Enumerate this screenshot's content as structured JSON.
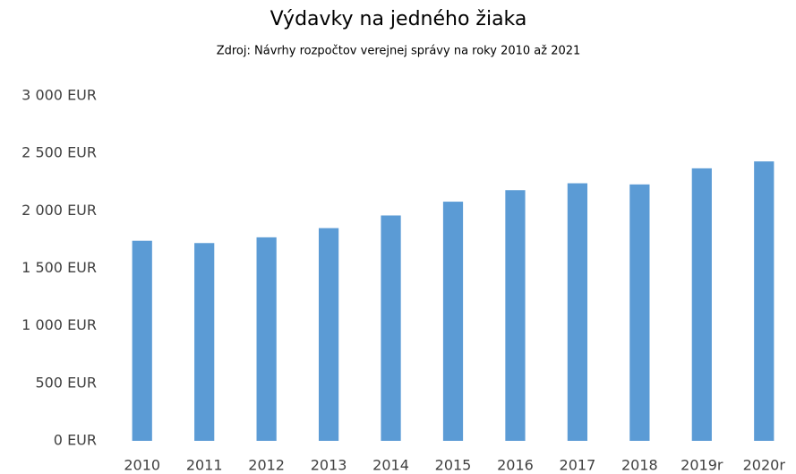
{
  "chart_data": {
    "type": "bar",
    "title": "Výdavky na jedného žiaka",
    "subtitle": "Zdroj: Návrhy rozpočtov verejnej správy na roky 2010 až 2021",
    "categories": [
      "2010",
      "2011",
      "2012",
      "2013",
      "2014",
      "2015",
      "2016",
      "2017",
      "2018",
      "2019r",
      "2020r"
    ],
    "values": [
      1740,
      1720,
      1770,
      1850,
      1960,
      2080,
      2180,
      2240,
      2230,
      2370,
      2430
    ],
    "color": "#5b9bd5",
    "ylim": [
      0,
      3000
    ],
    "yticks": [
      {
        "value": 0,
        "label": "0 EUR"
      },
      {
        "value": 500,
        "label": "500 EUR"
      },
      {
        "value": 1000,
        "label": "1 000 EUR"
      },
      {
        "value": 1500,
        "label": "1 500 EUR"
      },
      {
        "value": 2000,
        "label": "2 000 EUR"
      },
      {
        "value": 2500,
        "label": "2 500 EUR"
      },
      {
        "value": 3000,
        "label": "3 000 EUR"
      }
    ],
    "grid": false
  }
}
